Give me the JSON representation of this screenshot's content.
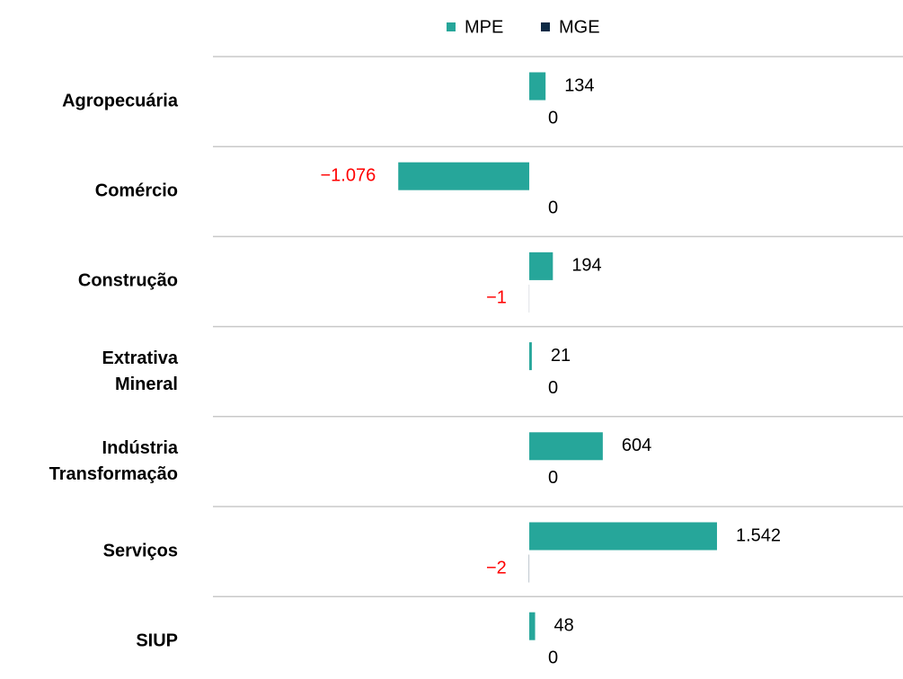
{
  "chart_data": {
    "type": "bar",
    "orientation": "horizontal",
    "categories": [
      "Agropecuária",
      "Comércio",
      "Construção",
      "Extrativa\nMineral",
      "Indústria\nTransformação",
      "Serviços",
      "SIUP"
    ],
    "series": [
      {
        "name": "MPE",
        "color": "#26a69a",
        "values": [
          134,
          -1076,
          194,
          21,
          604,
          1542,
          48
        ],
        "value_labels": [
          "134",
          "−1.076",
          "194",
          "21",
          "604",
          "1.542",
          "48"
        ]
      },
      {
        "name": "MGE",
        "color": "#0d2a45",
        "values": [
          0,
          0,
          -1,
          0,
          0,
          -2,
          0
        ],
        "value_labels": [
          "0",
          "0",
          "−1",
          "0",
          "0",
          "−2",
          "0"
        ]
      }
    ],
    "xlim": [
      -2576,
      3033
    ],
    "legend": "top",
    "negative_label_color": "#ff0000",
    "label_color": "#000000"
  }
}
